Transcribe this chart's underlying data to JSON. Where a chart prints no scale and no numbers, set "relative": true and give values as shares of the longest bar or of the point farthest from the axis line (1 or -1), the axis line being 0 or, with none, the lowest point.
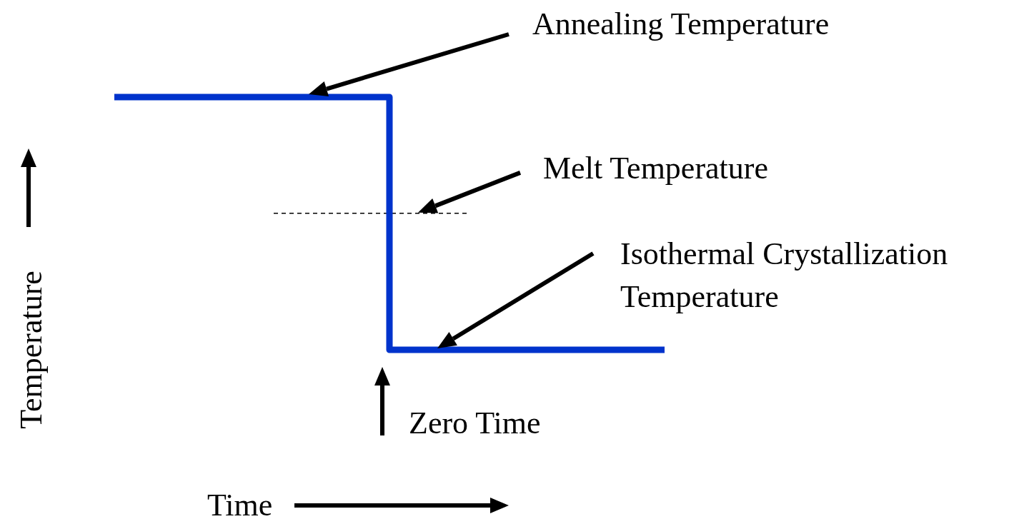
{
  "chart_data": {
    "type": "step",
    "relative": true,
    "xlabel": "Time",
    "ylabel": "Temperature",
    "categories": [
      null,
      null,
      null
    ],
    "series": [
      {
        "color": "#0033cc",
        "values": [
          1,
          0,
          0
        ]
      }
    ],
    "ref_lines": [
      {
        "axis": "y",
        "value": 0.54,
        "label": "Melt Temperature",
        "color": "#000000",
        "line_style": "dashed"
      }
    ],
    "annotations": [
      "Annealing Temperature",
      "Isothermal Crystallization Temperature",
      "Zero Time"
    ]
  }
}
